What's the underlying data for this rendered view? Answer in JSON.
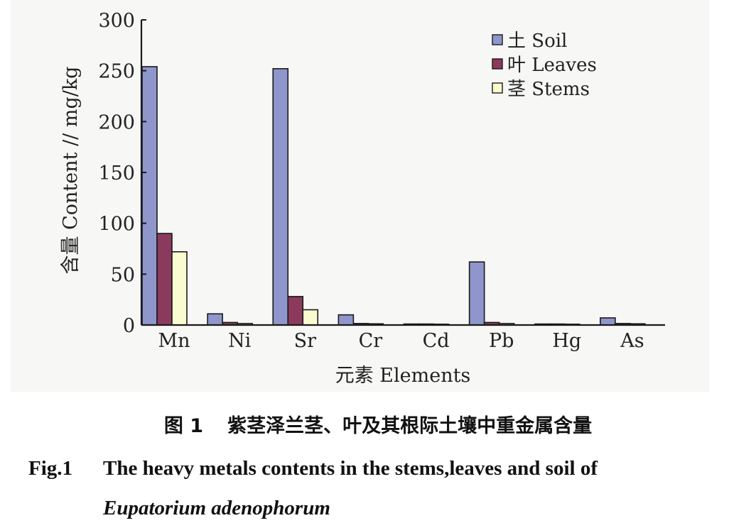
{
  "chart_data": {
    "type": "bar",
    "categories": [
      "Mn",
      "Ni",
      "Sr",
      "Cr",
      "Cd",
      "Pb",
      "Hg",
      "As"
    ],
    "series": [
      {
        "name": "土 Soil",
        "values": [
          254,
          11,
          252,
          10,
          1,
          62,
          1,
          7
        ]
      },
      {
        "name": "叶 Leaves",
        "values": [
          90,
          2.5,
          28,
          1.5,
          1,
          2.5,
          1,
          1.5
        ]
      },
      {
        "name": "茎 Stems",
        "values": [
          72,
          1.5,
          15,
          1.2,
          0.8,
          1.5,
          0.8,
          1.2
        ]
      }
    ],
    "xlabel": "元素 Elements",
    "ylabel": "含量 Content // mg/kg",
    "ylim": [
      0,
      300
    ],
    "yticks": [
      0,
      50,
      100,
      150,
      200,
      250,
      300
    ],
    "legend_position": "top-right",
    "grid": false,
    "colors": [
      "#8e96cc",
      "#8b3a5e",
      "#fbfbd0"
    ]
  },
  "caption": {
    "cn_number": "图 1",
    "cn_title": "紫茎泽兰茎、叶及其根际土壤中重金属含量",
    "en_number": "Fig.1",
    "en_title": "The heavy metals contents in the stems,leaves and soil of",
    "en_species": "Eupatorium adenophorum"
  }
}
